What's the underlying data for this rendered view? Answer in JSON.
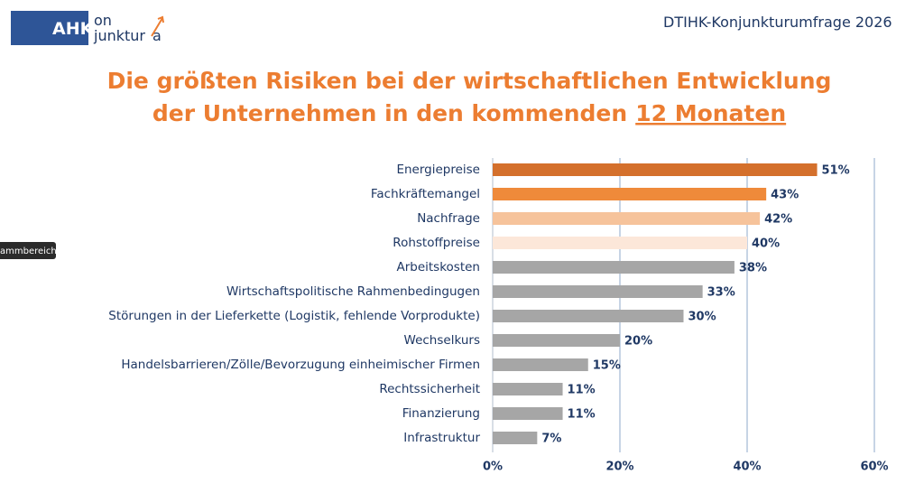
{
  "header": {
    "logo_main": "AHK",
    "logo_on": "on",
    "logo_junktur": "junktur",
    "logo_a": "a",
    "survey": "DTIHK-Konjunkturumfrage 2026",
    "tooltip": "ammbereich"
  },
  "chart_data": {
    "type": "bar",
    "orientation": "horizontal",
    "title_lines": [
      "Die größten Risiken bei der wirtschaftlichen Entwicklung",
      "der Unternehmen in den kommenden"
    ],
    "title_emphasis": "12 Monaten",
    "categories": [
      "Energiepreise",
      "Fachkräftemangel",
      "Nachfrage",
      "Rohstoffpreise",
      "Arbeitskosten",
      "Wirtschaftspolitische Rahmenbedingugen",
      "Störungen in der Lieferkette (Logistik, fehlende Vorprodukte)",
      "Wechselkurs",
      "Handelsbarrieren/Zölle/Bevorzugung einheimischer Firmen",
      "Rechtssicherheit",
      "Finanzierung",
      "Infrastruktur"
    ],
    "values": [
      51,
      43,
      42,
      40,
      38,
      33,
      30,
      20,
      15,
      11,
      11,
      7
    ],
    "value_labels": [
      "51%",
      "43%",
      "42%",
      "40%",
      "38%",
      "33%",
      "30%",
      "20%",
      "15%",
      "11%",
      "11%",
      "7%"
    ],
    "colors": [
      "#d4702c",
      "#ef8a3a",
      "#f6c39b",
      "#fce7d9",
      "#a6a6a6",
      "#a6a6a6",
      "#a6a6a6",
      "#a6a6a6",
      "#a6a6a6",
      "#a6a6a6",
      "#a6a6a6",
      "#a6a6a6"
    ],
    "xlim": [
      0,
      60
    ],
    "xticks": [
      {
        "value": 0,
        "label": "0%"
      },
      {
        "value": 20,
        "label": "20%"
      },
      {
        "value": 40,
        "label": "40%"
      },
      {
        "value": 60,
        "label": "60%"
      }
    ],
    "grid": true
  }
}
